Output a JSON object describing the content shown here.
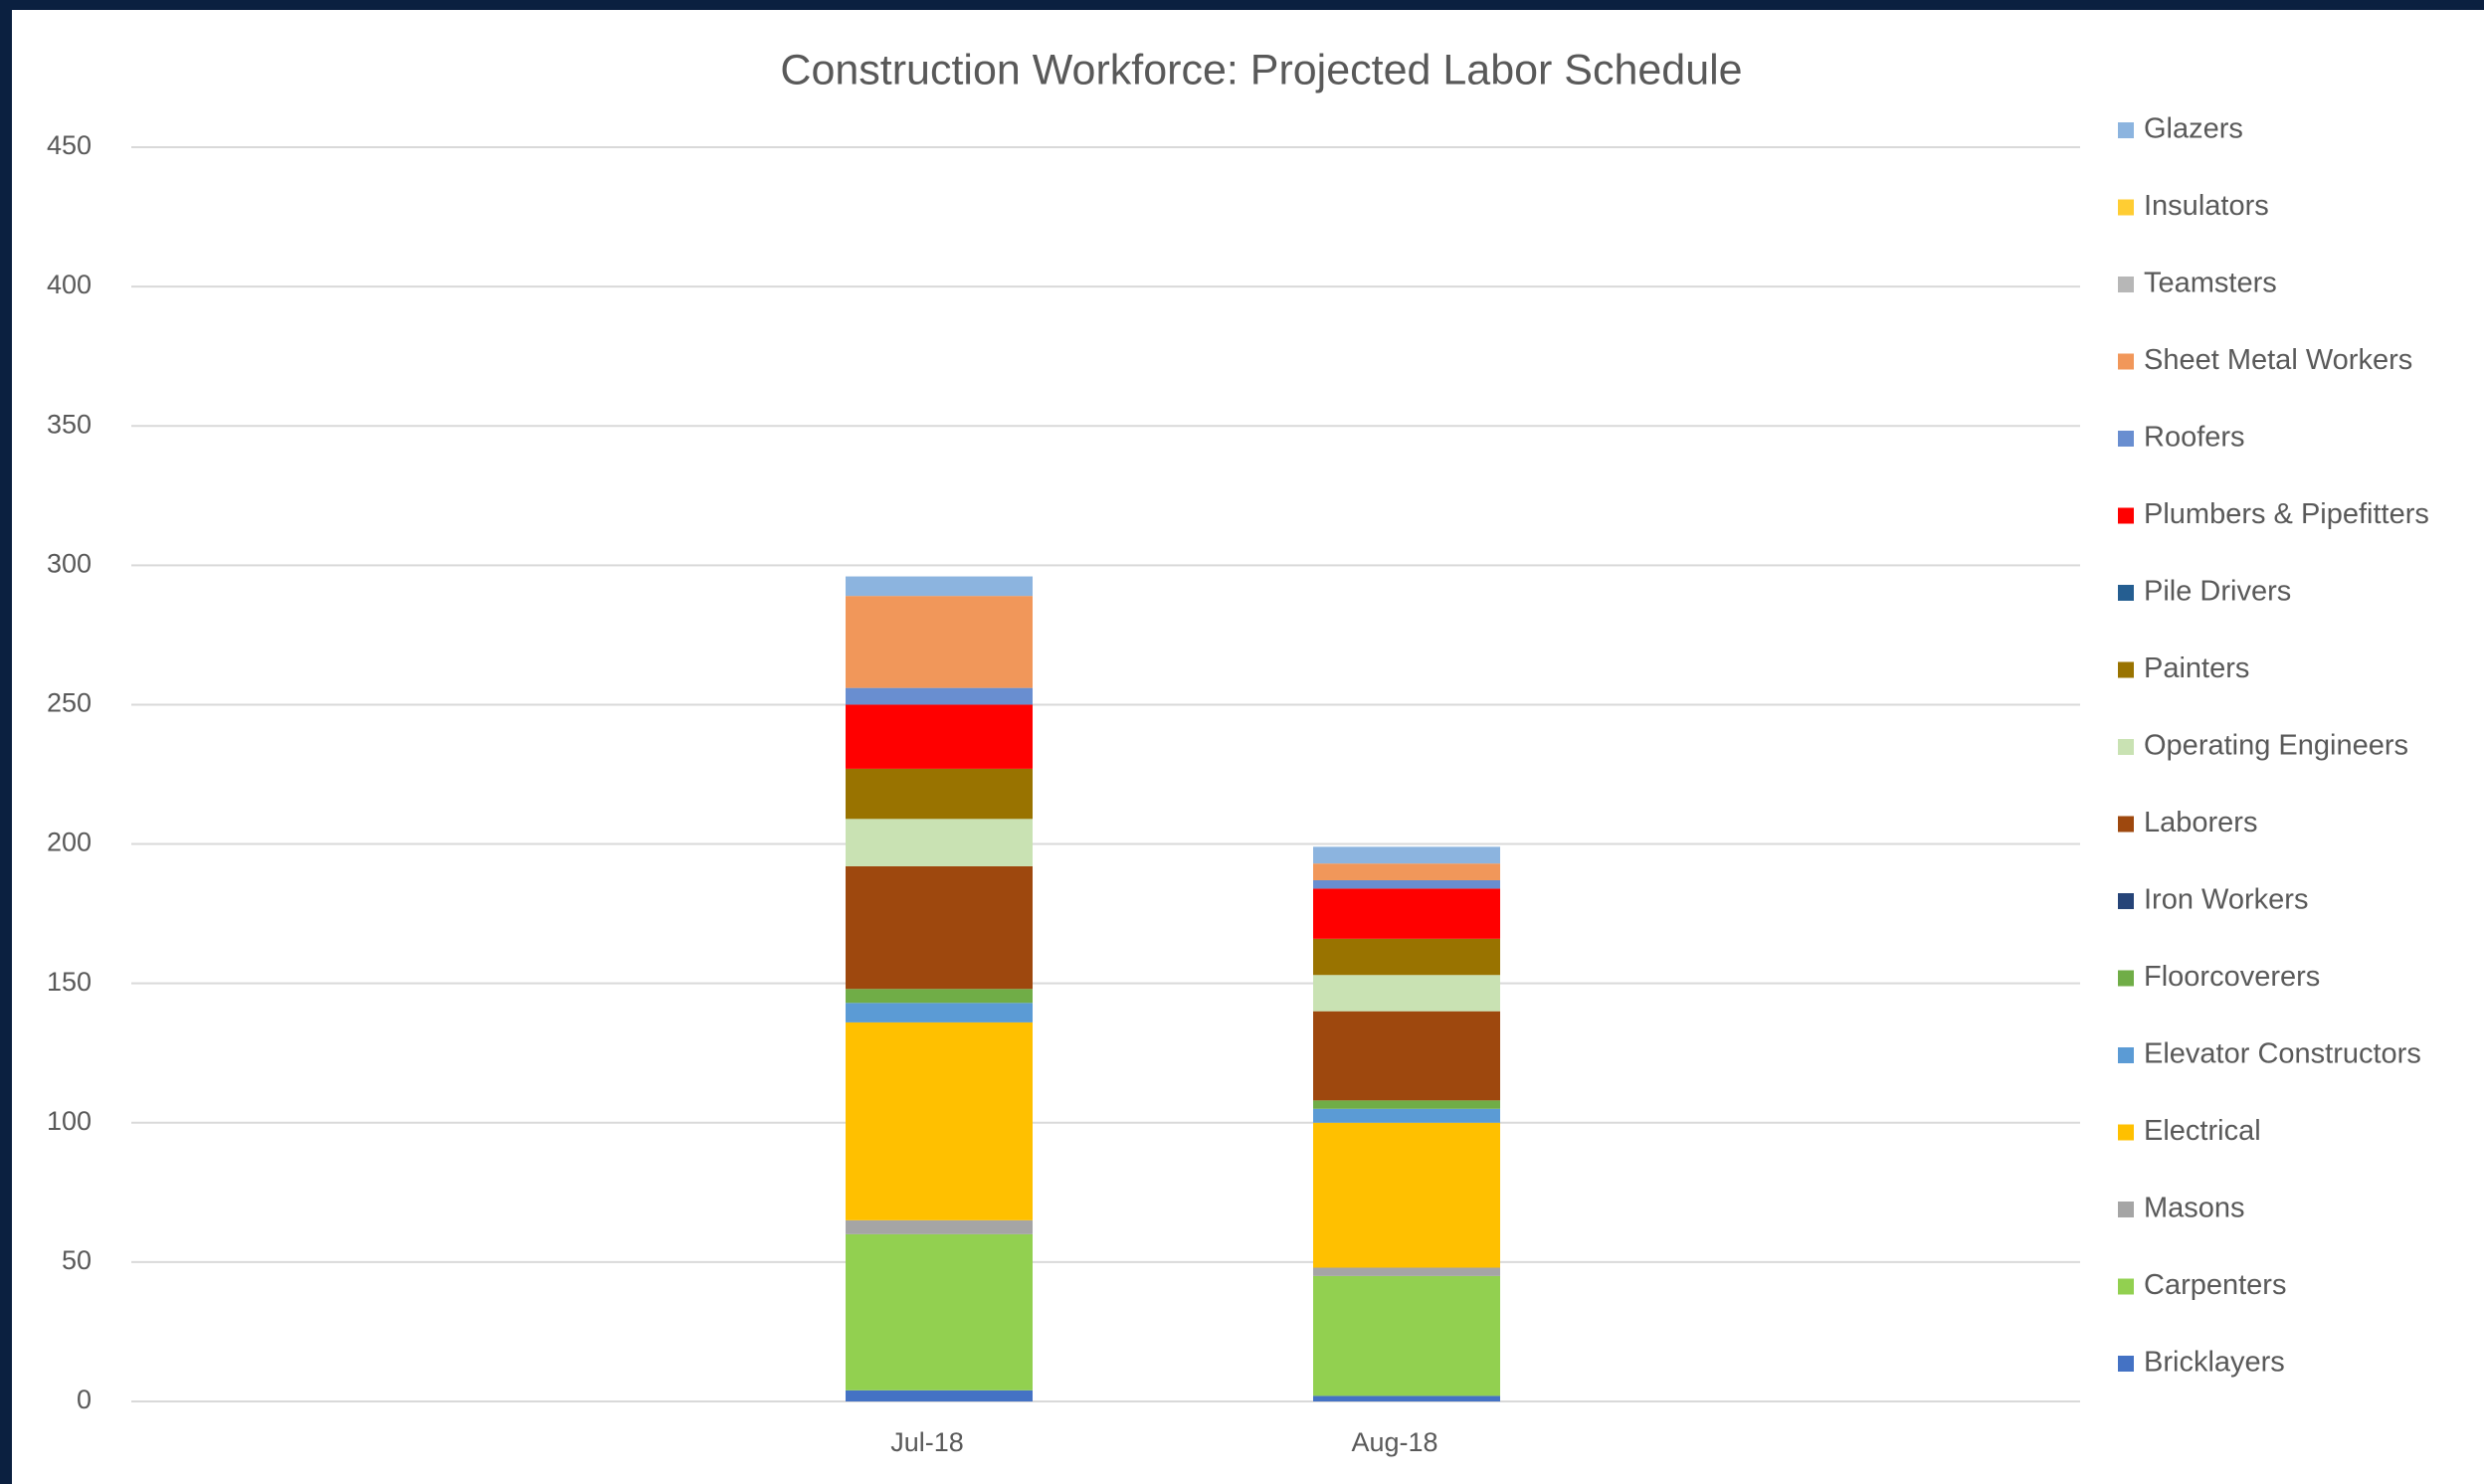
{
  "chart_data": {
    "type": "stacked-bar",
    "title": "Construction Workforce: Projected Labor Schedule",
    "categories": [
      "Jul-18",
      "Aug-18"
    ],
    "series": [
      {
        "name": "Bricklayers",
        "color": "#4472c4",
        "values": [
          4,
          2
        ]
      },
      {
        "name": "Carpenters",
        "color": "#92d050",
        "values": [
          56,
          43
        ]
      },
      {
        "name": "Masons",
        "color": "#a5a5a5",
        "values": [
          5,
          3
        ]
      },
      {
        "name": "Electrical",
        "color": "#ffc000",
        "values": [
          71,
          52
        ]
      },
      {
        "name": "Elevator Constructors",
        "color": "#5b9bd5",
        "values": [
          7,
          5
        ]
      },
      {
        "name": "Floorcoverers",
        "color": "#70ad47",
        "values": [
          5,
          3
        ]
      },
      {
        "name": "Iron Workers",
        "color": "#264478",
        "values": [
          0,
          0
        ]
      },
      {
        "name": "Laborers",
        "color": "#9e480e",
        "values": [
          44,
          32
        ]
      },
      {
        "name": "Operating Engineers",
        "color": "#c9e2b3",
        "values": [
          17,
          13
        ]
      },
      {
        "name": "Painters",
        "color": "#997300",
        "values": [
          18,
          13
        ]
      },
      {
        "name": "Pile Drivers",
        "color": "#255e91",
        "values": [
          0,
          0
        ]
      },
      {
        "name": "Plumbers & Pipefitters",
        "color": "#ff0000",
        "values": [
          23,
          18
        ]
      },
      {
        "name": "Roofers",
        "color": "#698ed0",
        "values": [
          6,
          3
        ]
      },
      {
        "name": "Sheet Metal Workers",
        "color": "#f1975a",
        "values": [
          33,
          6
        ]
      },
      {
        "name": "Teamsters",
        "color": "#b7b7b7",
        "values": [
          0,
          0
        ]
      },
      {
        "name": "Insulators",
        "color": "#ffcd33",
        "values": [
          0,
          0
        ]
      },
      {
        "name": "Glazers",
        "color": "#8cb4df",
        "values": [
          7,
          6
        ]
      }
    ],
    "ylim": [
      0,
      450
    ],
    "yticks": [
      0,
      50,
      100,
      150,
      200,
      250,
      300,
      350,
      400,
      450
    ],
    "grid": true,
    "legend": "right"
  }
}
